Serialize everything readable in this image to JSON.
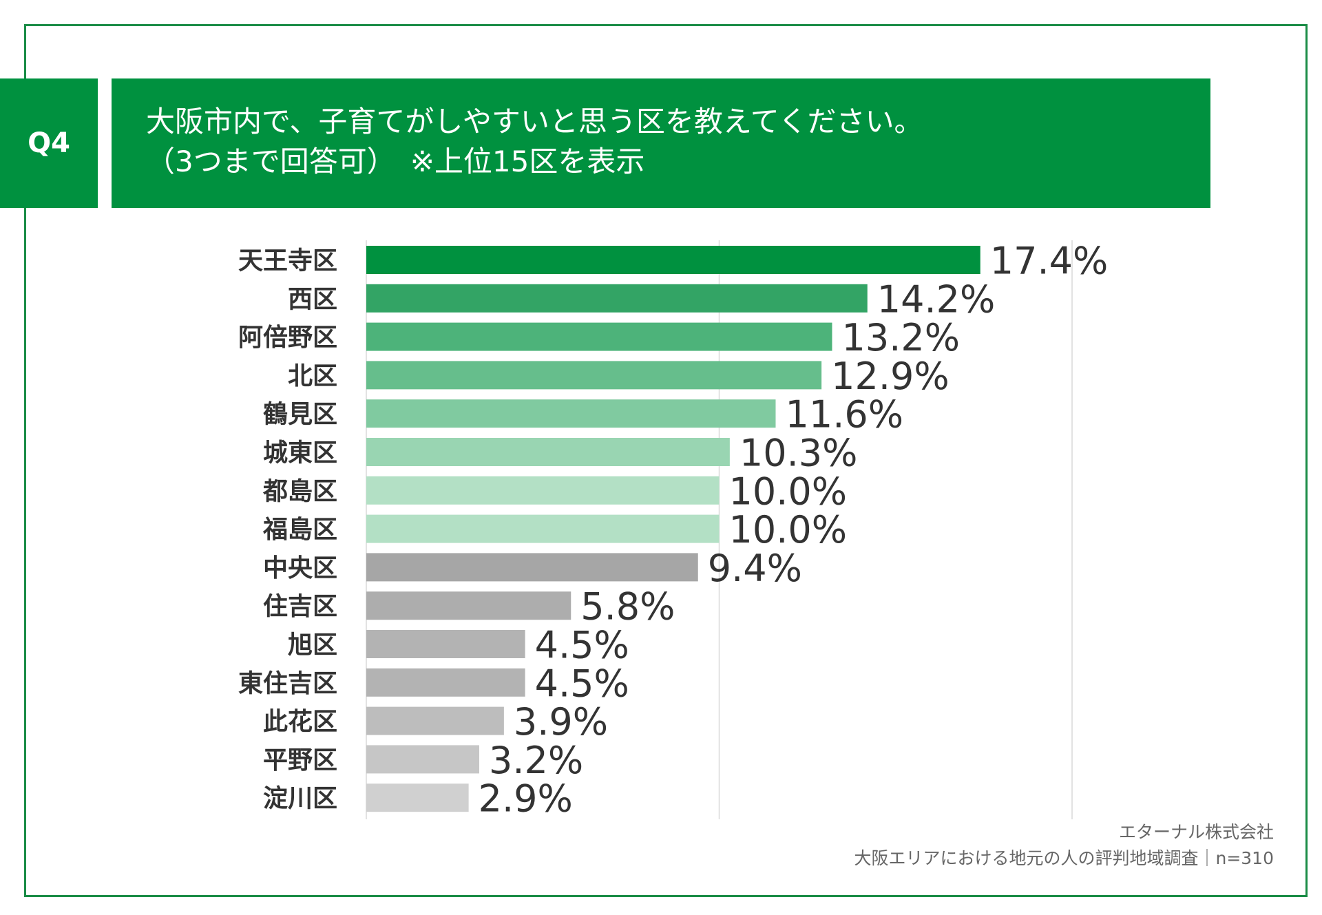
{
  "header": {
    "question_label": "Q4",
    "title_line1": "大阪市内で、子育てがしやすいと思う区を教えてください。",
    "title_line2": "（3つまで回答可）　※上位15区を表示"
  },
  "source": {
    "company": "エターナル株式会社",
    "survey": "大阪エリアにおける地元の人の評判地域調査｜n=310"
  },
  "colors": {
    "frame": "#1a8c46",
    "header_bg": "#00913f",
    "grid": "#d9d9d9"
  },
  "chart_data": {
    "type": "bar",
    "orientation": "horizontal",
    "categories": [
      "天王寺区",
      "西区",
      "阿倍野区",
      "北区",
      "鶴見区",
      "城東区",
      "都島区",
      "福島区",
      "中央区",
      "住吉区",
      "旭区",
      "東住吉区",
      "此花区",
      "平野区",
      "淀川区"
    ],
    "values": [
      17.4,
      14.2,
      13.2,
      12.9,
      11.6,
      10.3,
      10.0,
      10.0,
      9.4,
      5.8,
      4.5,
      4.5,
      3.9,
      3.2,
      2.9
    ],
    "value_labels": [
      "17.4%",
      "14.2%",
      "13.2%",
      "12.9%",
      "11.6%",
      "10.3%",
      "10.0%",
      "10.0%",
      "9.4%",
      "5.8%",
      "4.5%",
      "4.5%",
      "3.9%",
      "3.2%",
      "2.9%"
    ],
    "bar_colors": [
      "#00913f",
      "#33a465",
      "#4db37a",
      "#66be8c",
      "#80caa0",
      "#99d5b2",
      "#b3e0c5",
      "#b3e0c5",
      "#a6a6a6",
      "#adadad",
      "#b3b3b3",
      "#b3b3b3",
      "#bdbdbd",
      "#c6c6c6",
      "#d0d0d0"
    ],
    "xlim": [
      0,
      20
    ],
    "grid": "vertical",
    "gridlines_at": [
      0,
      10,
      20
    ]
  }
}
